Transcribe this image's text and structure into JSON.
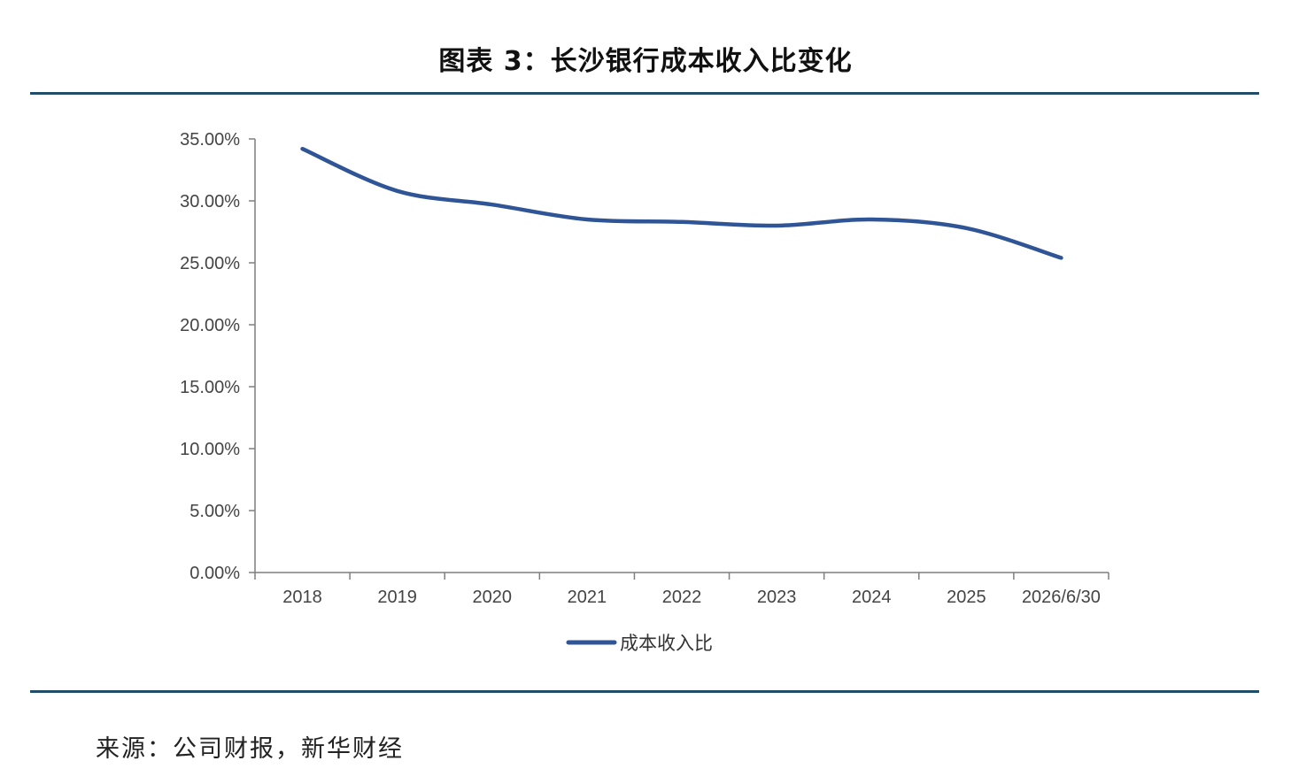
{
  "title": "图表 3：长沙银行成本收入比变化",
  "source": "来源：公司财报，新华财经",
  "colors": {
    "line": "#2f5597",
    "axis": "#7f7f7f",
    "rule": "#1f4e66"
  },
  "chart_data": {
    "type": "line",
    "categories": [
      "2018",
      "2019",
      "2020",
      "2021",
      "2022",
      "2023",
      "2024",
      "2025",
      "2026/6/30"
    ],
    "series": [
      {
        "name": "成本收入比",
        "values": [
          34.2,
          30.8,
          29.7,
          28.5,
          28.3,
          28.0,
          28.5,
          27.8,
          25.4
        ]
      }
    ],
    "y_ticks": [
      "0.00%",
      "5.00%",
      "10.00%",
      "15.00%",
      "20.00%",
      "25.00%",
      "30.00%",
      "35.00%"
    ],
    "ylim": [
      0,
      35
    ],
    "ystep": 5,
    "grid": false,
    "legend": "bottom-center"
  }
}
